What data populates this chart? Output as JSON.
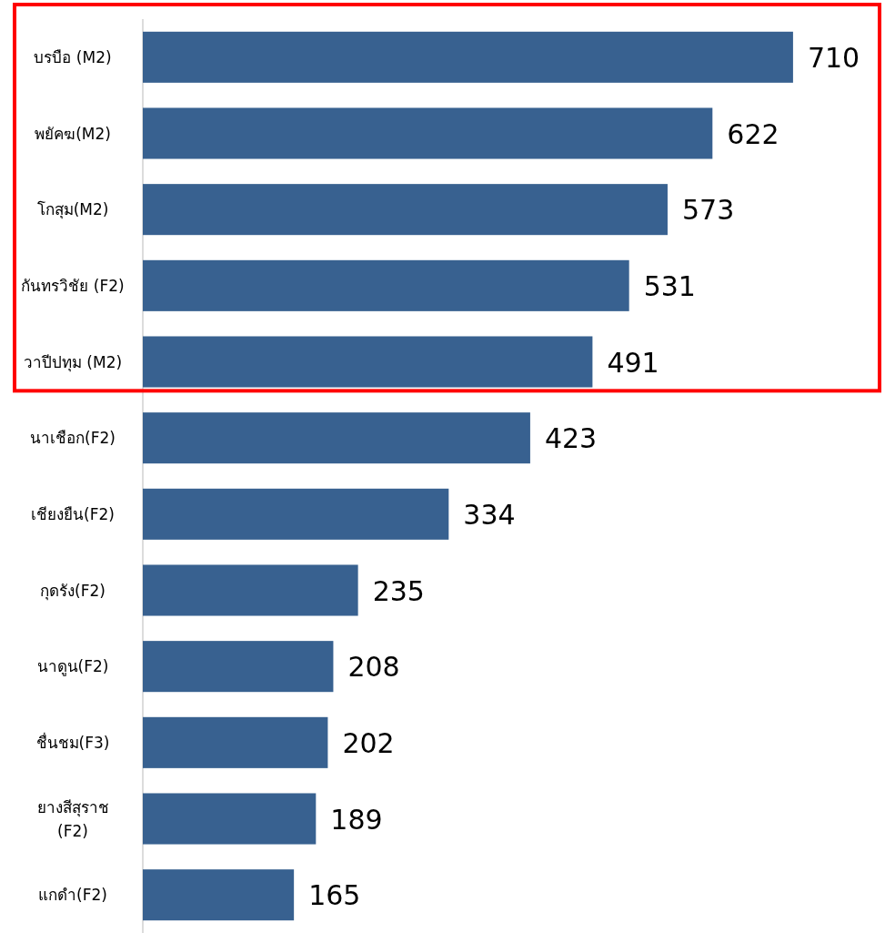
{
  "chart_data": {
    "type": "bar",
    "orientation": "horizontal",
    "categories": [
      "บรบือ (M2)",
      "พยัคฆ(M2)",
      "โกสุม(M2)",
      "กันทรวิชัย (F2)",
      "วาปีปทุม (M2)",
      "นาเชือก(F2)",
      "เชียงยืน(F2)",
      "กุดรัง(F2)",
      "นาดูน(F2)",
      "ชื่นชม(F3)",
      "ยางสีสุราช (F2)",
      "แกดำ(F2)"
    ],
    "values": [
      710,
      622,
      573,
      531,
      491,
      423,
      334,
      235,
      208,
      202,
      189,
      165
    ],
    "color": "#386190",
    "data_labels": true
  }
}
